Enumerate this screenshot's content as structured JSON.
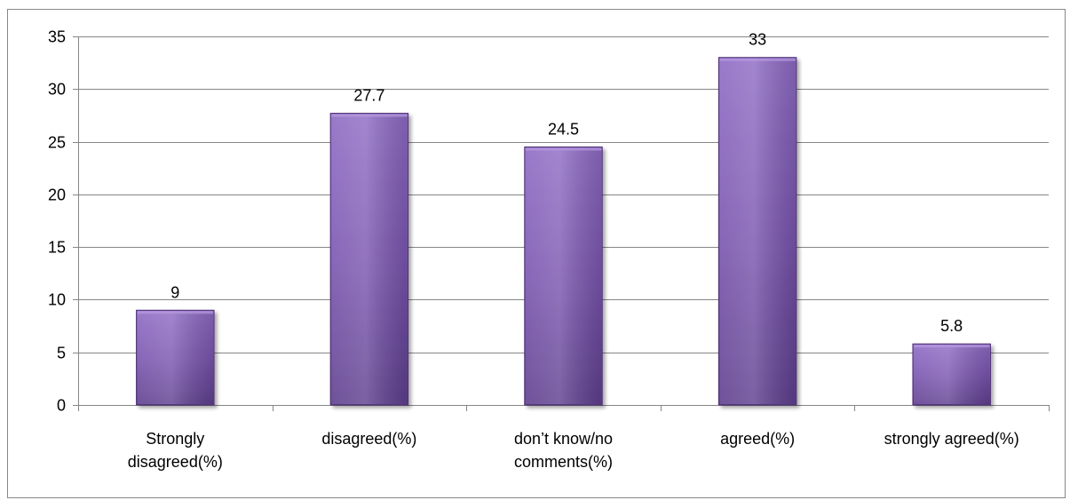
{
  "chart_data": {
    "type": "bar",
    "categories": [
      "Strongly disagreed(%)",
      "disagreed(%)",
      "don’t know/no comments(%)",
      "agreed(%)",
      "strongly agreed(%)"
    ],
    "category_lines": [
      [
        "Strongly",
        "disagreed(%)"
      ],
      [
        "disagreed(%)"
      ],
      [
        "don’t know/no",
        "comments(%)"
      ],
      [
        "agreed(%)"
      ],
      [
        "strongly agreed(%)"
      ]
    ],
    "values": [
      9,
      27.7,
      24.5,
      33,
      5.8
    ],
    "data_labels": [
      "9",
      "27.7",
      "24.5",
      "33",
      "5.8"
    ],
    "title": "",
    "xlabel": "",
    "ylabel": "",
    "ylim": [
      0,
      35
    ],
    "yticks": [
      0,
      5,
      10,
      15,
      20,
      25,
      30,
      35
    ],
    "grid": true,
    "legend": "none",
    "colors": {
      "bar_top": "#8e6bc4",
      "bar_mid": "#7a56b0",
      "bar_bottom": "#5f3f8e",
      "bar_edge": "#4b2f72",
      "gridline": "#868686",
      "axis": "#868686"
    }
  }
}
